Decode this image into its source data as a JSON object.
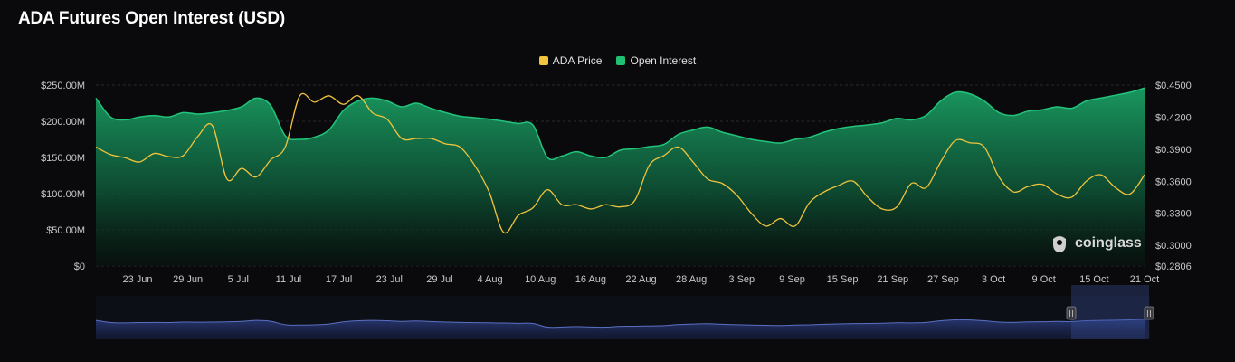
{
  "header": {
    "title": "ADA Futures Open Interest (USD)"
  },
  "legend": [
    {
      "label": "ADA Price",
      "color": "#f0c43c"
    },
    {
      "label": "Open Interest",
      "color": "#1fbf74"
    }
  ],
  "branding": {
    "logo_text": "coinglass"
  },
  "chart_data": {
    "type": "area",
    "title": "ADA Futures Open Interest (USD)",
    "x_labels": [
      "23 Jun",
      "29 Jun",
      "5 Jul",
      "11 Jul",
      "17 Jul",
      "23 Jul",
      "29 Jul",
      "4 Aug",
      "10 Aug",
      "16 Aug",
      "22 Aug",
      "28 Aug",
      "3 Sep",
      "9 Sep",
      "15 Sep",
      "21 Sep",
      "27 Sep",
      "3 Oct",
      "9 Oct",
      "15 Oct",
      "21 Oct"
    ],
    "y_left_ticks": [
      "$0",
      "$50.00M",
      "$100.00M",
      "$150.00M",
      "$200.00M",
      "$250.00M"
    ],
    "y_left_range": [
      0,
      250
    ],
    "y_left_unit": "M USD",
    "y_right_ticks": [
      "$0.2806",
      "$0.3000",
      "$0.3300",
      "$0.3600",
      "$0.3900",
      "$0.4200",
      "$0.4500"
    ],
    "y_right_range": [
      0.2806,
      0.45
    ],
    "series": [
      {
        "name": "Open Interest",
        "axis": "left",
        "values": [
          232,
          206,
          202,
          206,
          208,
          206,
          212,
          210,
          212,
          215,
          220,
          232,
          222,
          180,
          175,
          178,
          188,
          215,
          228,
          232,
          228,
          220,
          225,
          218,
          212,
          207,
          205,
          203,
          200,
          197,
          195,
          150,
          152,
          158,
          152,
          150,
          160,
          162,
          165,
          168,
          182,
          188,
          192,
          185,
          180,
          175,
          172,
          170,
          175,
          178,
          185,
          190,
          193,
          195,
          198,
          204,
          202,
          208,
          228,
          240,
          238,
          228,
          212,
          208,
          214,
          216,
          220,
          218,
          228,
          232,
          236,
          240,
          246
        ]
      },
      {
        "name": "ADA Price",
        "axis": "right",
        "values": [
          0.392,
          0.385,
          0.382,
          0.378,
          0.386,
          0.383,
          0.384,
          0.402,
          0.412,
          0.362,
          0.372,
          0.364,
          0.38,
          0.392,
          0.44,
          0.434,
          0.44,
          0.432,
          0.44,
          0.424,
          0.418,
          0.4,
          0.4,
          0.4,
          0.395,
          0.392,
          0.375,
          0.35,
          0.312,
          0.328,
          0.335,
          0.352,
          0.338,
          0.338,
          0.334,
          0.338,
          0.336,
          0.342,
          0.375,
          0.384,
          0.392,
          0.378,
          0.362,
          0.358,
          0.347,
          0.33,
          0.318,
          0.325,
          0.318,
          0.34,
          0.35,
          0.356,
          0.36,
          0.345,
          0.334,
          0.336,
          0.358,
          0.354,
          0.378,
          0.398,
          0.396,
          0.392,
          0.364,
          0.35,
          0.355,
          0.357,
          0.348,
          0.345,
          0.36,
          0.366,
          0.354,
          0.348,
          0.366
        ]
      }
    ],
    "legend_position": "top-center",
    "grid": true
  }
}
